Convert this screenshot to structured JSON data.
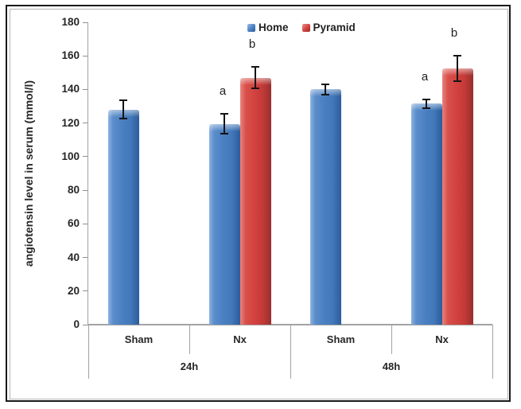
{
  "figure": {
    "outer_border_color": "#1a1a1a",
    "inner_border_color": "#b3b3b3",
    "background": "#ffffff"
  },
  "chart_data": {
    "type": "bar",
    "title": "",
    "ylabel": "angiotensin level in serum (mmol/l)",
    "xlabel": "",
    "ylim": [
      0,
      180
    ],
    "ytick_step": 20,
    "yticks": [
      0,
      20,
      40,
      60,
      80,
      100,
      120,
      140,
      160,
      180
    ],
    "grid": false,
    "legend_position": "top",
    "group_labels": [
      "24h",
      "48h"
    ],
    "categories": [
      {
        "label": "Sham",
        "group": "24h"
      },
      {
        "label": "Nx",
        "group": "24h"
      },
      {
        "label": "Sham",
        "group": "48h"
      },
      {
        "label": "Nx",
        "group": "48h"
      }
    ],
    "series": [
      {
        "name": "Home",
        "color": "#4a80c2",
        "values": [
          128,
          119.5,
          140,
          131.5
        ],
        "errors": [
          6,
          6.5,
          3.5,
          3
        ],
        "annotations": [
          null,
          "a",
          null,
          "a"
        ]
      },
      {
        "name": "Pyramid",
        "color": "#d2413e",
        "values": [
          null,
          147,
          null,
          152.5
        ],
        "errors": [
          null,
          7,
          null,
          8
        ],
        "annotations": [
          null,
          "b",
          null,
          "b"
        ]
      }
    ],
    "error_bar_color": "#141414",
    "axis_color": "#a3a3a3",
    "text_color": "#262626"
  }
}
